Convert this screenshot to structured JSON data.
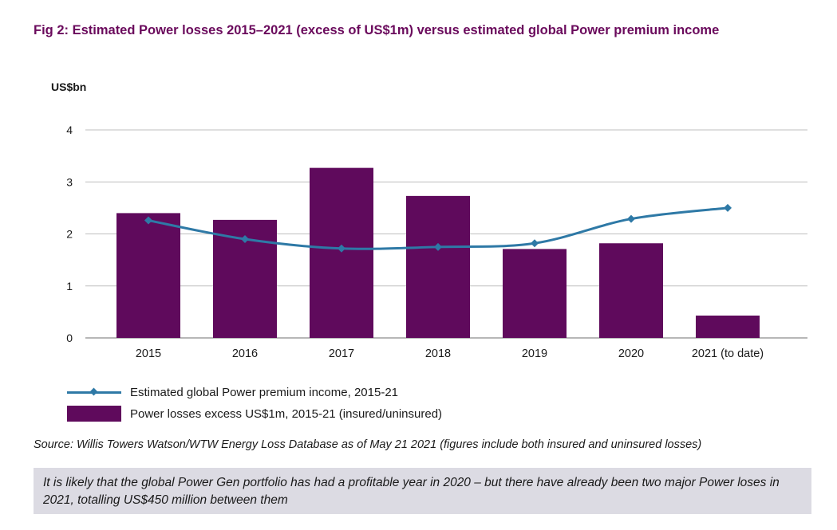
{
  "figure": {
    "title": "Fig 2: Estimated Power losses 2015–2021 (excess of US$1m) versus estimated global Power premium income",
    "source": "Source:  Willis Towers Watson/WTW Energy Loss Database as of May 21 2021 (figures include both insured and uninsured losses)",
    "callout": "It is likely that the global Power Gen portfolio has had a profitable year in 2020 – but there have already been two major Power loses in 2021, totalling US$450 million between them"
  },
  "colors": {
    "title": "#6a0a5c",
    "bar": "#5f0a5c",
    "line": "#2e79a6",
    "grid": "#bfbfbf",
    "callout_bg": "#dcdbe3"
  },
  "chart_data": {
    "type": "bar",
    "ylabel": "US$bn",
    "xlabel": "",
    "ylim": [
      0,
      4
    ],
    "yticks": [
      0,
      1,
      2,
      3,
      4
    ],
    "grid": true,
    "legend_position": "bottom-left",
    "categories": [
      "2015",
      "2016",
      "2017",
      "2018",
      "2019",
      "2020",
      "2021 (to date)"
    ],
    "series": [
      {
        "name": "Power losses excess US$1m, 2015-21 (insured/uninsured)",
        "type": "bar",
        "values": [
          2.4,
          2.27,
          3.27,
          2.73,
          1.71,
          1.82,
          0.43
        ]
      },
      {
        "name": "Estimated global Power premium income, 2015-21",
        "type": "line",
        "marker": "diamond",
        "values": [
          2.26,
          1.9,
          1.72,
          1.75,
          1.82,
          2.29,
          2.5
        ]
      }
    ]
  }
}
